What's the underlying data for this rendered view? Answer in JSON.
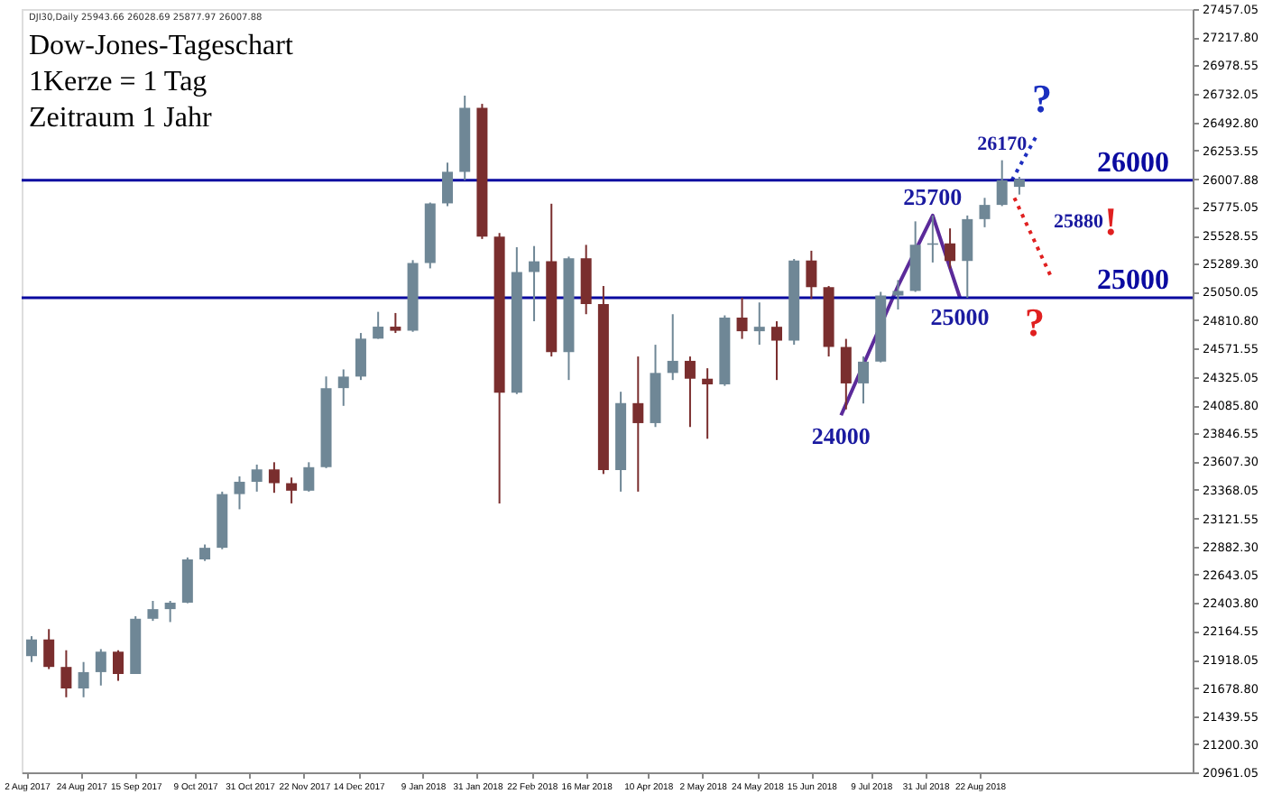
{
  "chart_data": {
    "type": "candlestick",
    "title": "Dow-Jones-Tageschart",
    "annotations": [
      "DJI30,Daily 25943.66 26028.69 25877.97 26007.88",
      "1Kerze = 1 Tag",
      "Zeitraum 1 Jahr",
      "25880",
      "?",
      "!",
      "?",
      {
        "text": "26170",
        "x": "2018-08-31",
        "y": 26170
      },
      {
        "text": "25700",
        "x": "2018-08-03",
        "y": 25700
      },
      {
        "text": "25000",
        "x": "2018-08-14",
        "y": 25000
      },
      {
        "text": "24000",
        "x": "2018-06-27",
        "y": 24000
      }
    ],
    "x": [
      "2017-08-04",
      "2017-08-11",
      "2017-08-18",
      "2017-08-25",
      "2017-09-01",
      "2017-09-08",
      "2017-09-15",
      "2017-09-22",
      "2017-09-29",
      "2017-10-06",
      "2017-10-13",
      "2017-10-20",
      "2017-10-27",
      "2017-11-03",
      "2017-11-10",
      "2017-11-17",
      "2017-11-24",
      "2017-12-01",
      "2017-12-08",
      "2017-12-15",
      "2017-12-22",
      "2017-12-29",
      "2018-01-05",
      "2018-01-12",
      "2018-01-19",
      "2018-01-26",
      "2018-02-02",
      "2018-02-09",
      "2018-02-16",
      "2018-02-23",
      "2018-03-02",
      "2018-03-09",
      "2018-03-16",
      "2018-03-23",
      "2018-03-30",
      "2018-04-06",
      "2018-04-13",
      "2018-04-20",
      "2018-04-27",
      "2018-05-04",
      "2018-05-11",
      "2018-05-18",
      "2018-05-25",
      "2018-06-01",
      "2018-06-08",
      "2018-06-15",
      "2018-06-22",
      "2018-06-29",
      "2018-07-06",
      "2018-07-13",
      "2018-07-20",
      "2018-07-27",
      "2018-08-03",
      "2018-08-10",
      "2018-08-17",
      "2018-08-24",
      "2018-08-31",
      "2018-09-07"
    ],
    "ohlc": [
      [
        21950,
        22120,
        21900,
        22092
      ],
      [
        22092,
        22180,
        21840,
        21858
      ],
      [
        21858,
        22000,
        21600,
        21675
      ],
      [
        21675,
        21900,
        21600,
        21814
      ],
      [
        21814,
        22010,
        21700,
        21988
      ],
      [
        21988,
        22000,
        21740,
        21798
      ],
      [
        21798,
        22290,
        21798,
        22268
      ],
      [
        22268,
        22420,
        22250,
        22350
      ],
      [
        22350,
        22420,
        22240,
        22405
      ],
      [
        22405,
        22790,
        22400,
        22773
      ],
      [
        22773,
        22900,
        22760,
        22872
      ],
      [
        22872,
        23350,
        22860,
        23329
      ],
      [
        23329,
        23480,
        23200,
        23434
      ],
      [
        23434,
        23580,
        23350,
        23539
      ],
      [
        23539,
        23600,
        23340,
        23422
      ],
      [
        23422,
        23470,
        23250,
        23358
      ],
      [
        23358,
        23600,
        23350,
        23558
      ],
      [
        23558,
        24330,
        23550,
        24231
      ],
      [
        24231,
        24390,
        24080,
        24329
      ],
      [
        24329,
        24700,
        24300,
        24652
      ],
      [
        24652,
        24880,
        24650,
        24754
      ],
      [
        24754,
        24870,
        24700,
        24719
      ],
      [
        24719,
        25320,
        24710,
        25296
      ],
      [
        25296,
        25810,
        25250,
        25803
      ],
      [
        25803,
        26150,
        25780,
        26072
      ],
      [
        26072,
        26720,
        26000,
        26617
      ],
      [
        26617,
        26650,
        25500,
        25521
      ],
      [
        25521,
        25550,
        23250,
        24191
      ],
      [
        24191,
        25430,
        24180,
        25219
      ],
      [
        25219,
        25440,
        24800,
        25310
      ],
      [
        25310,
        25800,
        24500,
        24538
      ],
      [
        24538,
        25350,
        24300,
        25336
      ],
      [
        25336,
        25450,
        24860,
        24946
      ],
      [
        24946,
        25100,
        23500,
        23533
      ],
      [
        23533,
        24200,
        23350,
        24103
      ],
      [
        24103,
        24500,
        23350,
        23933
      ],
      [
        23933,
        24600,
        23900,
        24360
      ],
      [
        24360,
        24860,
        24300,
        24463
      ],
      [
        24463,
        24500,
        23900,
        24311
      ],
      [
        24311,
        24400,
        23800,
        24263
      ],
      [
        24263,
        24850,
        24250,
        24831
      ],
      [
        24831,
        25000,
        24650,
        24715
      ],
      [
        24715,
        24960,
        24600,
        24753
      ],
      [
        24753,
        24800,
        24300,
        24635
      ],
      [
        24635,
        25330,
        24600,
        25317
      ],
      [
        25317,
        25400,
        24990,
        25090
      ],
      [
        25090,
        25100,
        24500,
        24581
      ],
      [
        24581,
        24650,
        24050,
        24271
      ],
      [
        24271,
        24500,
        24100,
        24456
      ],
      [
        24456,
        25050,
        24450,
        25019
      ],
      [
        25019,
        25150,
        24900,
        25058
      ],
      [
        25058,
        25650,
        25050,
        25451
      ],
      [
        25451,
        25700,
        25300,
        25463
      ],
      [
        25463,
        25590,
        25250,
        25313
      ],
      [
        25313,
        25700,
        25000,
        25669
      ],
      [
        25669,
        25850,
        25600,
        25790
      ],
      [
        25790,
        26170,
        25780,
        26000
      ],
      [
        25943.66,
        26028.69,
        25877.97,
        26007.88
      ]
    ],
    "colors": [
      "#6f8796",
      "#7a2e2e",
      "#7a2e2e",
      "#6f8796",
      "#6f8796",
      "#7a2e2e",
      "#6f8796",
      "#6f8796",
      "#6f8796",
      "#6f8796",
      "#6f8796",
      "#6f8796",
      "#6f8796",
      "#6f8796",
      "#7a2e2e",
      "#7a2e2e",
      "#6f8796",
      "#6f8796",
      "#6f8796",
      "#6f8796",
      "#6f8796",
      "#7a2e2e",
      "#6f8796",
      "#6f8796",
      "#6f8796",
      "#6f8796",
      "#7a2e2e",
      "#7a2e2e",
      "#6f8796",
      "#6f8796",
      "#7a2e2e",
      "#6f8796",
      "#7a2e2e",
      "#7a2e2e",
      "#6f8796",
      "#7a2e2e",
      "#6f8796",
      "#6f8796",
      "#7a2e2e",
      "#7a2e2e",
      "#6f8796",
      "#7a2e2e",
      "#6f8796",
      "#7a2e2e",
      "#6f8796",
      "#7a2e2e",
      "#7a2e2e",
      "#7a2e2e",
      "#6f8796",
      "#6f8796",
      "#6f8796",
      "#6f8796",
      "#6f8796",
      "#7a2e2e",
      "#6f8796",
      "#6f8796",
      "#6f8796",
      "#6f8796"
    ],
    "series": [
      {
        "type": "line",
        "color": "#5b2a9a",
        "line_style": "solid",
        "x": [
          "2018-06-27",
          "2018-07-20",
          "2018-08-03",
          "2018-08-14"
        ],
        "values": [
          24000,
          25100,
          25700,
          25000
        ]
      },
      {
        "type": "line",
        "color": "#1f2fbf",
        "line_style": "dotted",
        "x": [
          "2018-09-04",
          "2018-09-14"
        ],
        "values": [
          26000,
          26380
        ]
      },
      {
        "type": "line",
        "color": "#e02020",
        "line_style": "dotted",
        "x": [
          "2018-09-05",
          "2018-09-20"
        ],
        "values": [
          25850,
          25170
        ]
      }
    ],
    "ref_lines": [
      {
        "axis": "y",
        "value": 26000,
        "label": "26000",
        "color": "#0a0aa0"
      },
      {
        "axis": "y",
        "value": 25000,
        "label": "25000",
        "color": "#0a0aa0"
      }
    ],
    "xlim": [
      "2017-07-31",
      "2018-11-16"
    ],
    "ylim": [
      20961.05,
      27457.05
    ],
    "xticks": [
      {
        "value": "2017-08-02",
        "label": "2 Aug 2017"
      },
      {
        "value": "2017-08-24",
        "label": "24 Aug 2017"
      },
      {
        "value": "2017-09-15",
        "label": "15 Sep 2017"
      },
      {
        "value": "2017-10-09",
        "label": "9 Oct 2017"
      },
      {
        "value": "2017-10-31",
        "label": "31 Oct 2017"
      },
      {
        "value": "2017-11-22",
        "label": "22 Nov 2017"
      },
      {
        "value": "2017-12-14",
        "label": "14 Dec 2017"
      },
      {
        "value": "2018-01-09",
        "label": "9 Jan 2018"
      },
      {
        "value": "2018-01-31",
        "label": "31 Jan 2018"
      },
      {
        "value": "2018-02-22",
        "label": "22 Feb 2018"
      },
      {
        "value": "2018-03-16",
        "label": "16 Mar 2018"
      },
      {
        "value": "2018-04-10",
        "label": "10 Apr 2018"
      },
      {
        "value": "2018-05-02",
        "label": "2 May 2018"
      },
      {
        "value": "2018-05-24",
        "label": "24 May 2018"
      },
      {
        "value": "2018-06-15",
        "label": "15 Jun 2018"
      },
      {
        "value": "2018-07-09",
        "label": "9 Jul 2018"
      },
      {
        "value": "2018-07-31",
        "label": "31 Jul 2018"
      },
      {
        "value": "2018-08-22",
        "label": "22 Aug 2018"
      }
    ],
    "yticks": [
      20961.05,
      {
        "value": 21200.3,
        "label": "21200.30"
      },
      21439.55,
      {
        "value": 21678.8,
        "label": "21678.80"
      },
      21918.05,
      22164.55,
      {
        "value": 22403.8,
        "label": "22403.80"
      },
      22643.05,
      {
        "value": 22882.3,
        "label": "22882.30"
      },
      23121.55,
      23368.05,
      {
        "value": 23607.3,
        "label": "23607.30"
      },
      23846.55,
      {
        "value": 24085.8,
        "label": "24085.80"
      },
      24325.05,
      24571.55,
      {
        "value": 24810.8,
        "label": "24810.80"
      },
      25050.05,
      {
        "value": 25289.3,
        "label": "25289.30"
      },
      25528.55,
      25775.05,
      26007.88,
      26253.55,
      {
        "value": 26492.8,
        "label": "26492.80"
      },
      26732.05,
      26978.55,
      {
        "value": 27217.8,
        "label": "27217.80"
      },
      27457.05
    ]
  }
}
